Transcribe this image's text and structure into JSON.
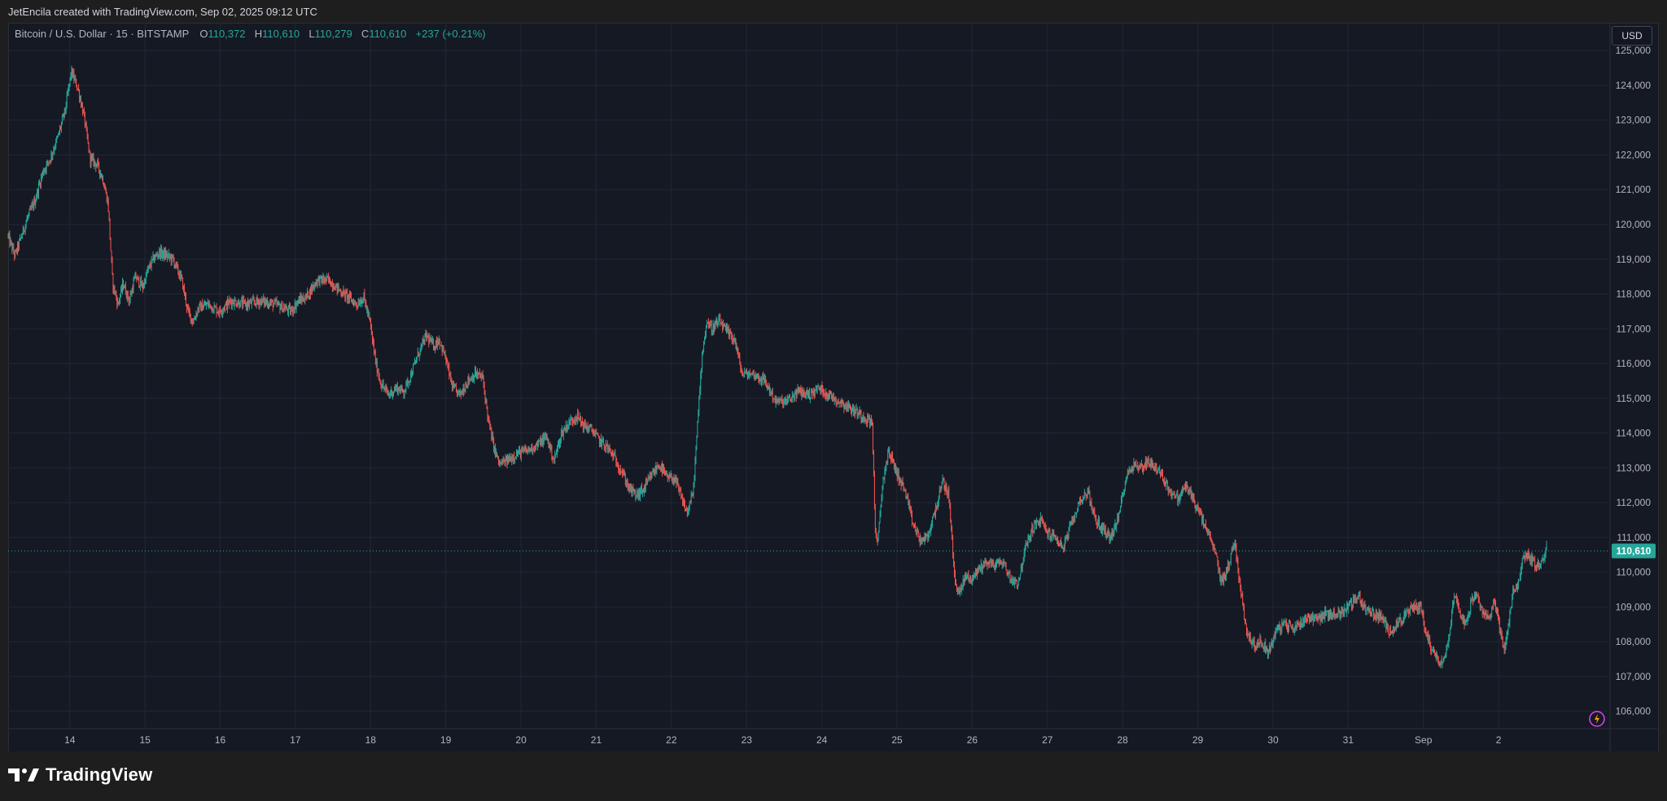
{
  "header": {
    "credit": "JetEncila created with TradingView.com, Sep 02, 2025 09:12 UTC"
  },
  "legend": {
    "symbol": "Bitcoin / U.S. Dollar · 15 · BITSTAMP",
    "open_label": "O",
    "open_value": "110,372",
    "high_label": "H",
    "high_value": "110,610",
    "low_label": "L",
    "low_value": "110,279",
    "close_label": "C",
    "close_value": "110,610",
    "change": "+237 (+0.21%)"
  },
  "currency_button": "USD",
  "last_price_label": "110,610",
  "brand": "TradingView",
  "colors": {
    "up": "#26a69a",
    "down": "#ef5350",
    "background": "#151924",
    "grid": "#232734",
    "price_tag": "#26a69a"
  },
  "chart_data": {
    "type": "candlestick",
    "symbol": "BTCUSD",
    "interval": "15",
    "ylim": [
      105500,
      125800
    ],
    "y_ticks": [
      106000,
      107000,
      108000,
      109000,
      110000,
      111000,
      112000,
      113000,
      114000,
      115000,
      116000,
      117000,
      118000,
      119000,
      120000,
      121000,
      122000,
      123000,
      124000,
      125000
    ],
    "y_tick_labels": [
      "106,000",
      "107,000",
      "108,000",
      "109,000",
      "110,000",
      "111,000",
      "112,000",
      "113,000",
      "114,000",
      "115,000",
      "116,000",
      "117,000",
      "118,000",
      "119,000",
      "120,000",
      "121,000",
      "122,000",
      "123,000",
      "124,000",
      "125,000"
    ],
    "x_range_days": [
      -0.82,
      20.46
    ],
    "x_ticks": [
      {
        "day": 0,
        "label": "14"
      },
      {
        "day": 1,
        "label": "15"
      },
      {
        "day": 2,
        "label": "16"
      },
      {
        "day": 3,
        "label": "17"
      },
      {
        "day": 4,
        "label": "18"
      },
      {
        "day": 5,
        "label": "19"
      },
      {
        "day": 6,
        "label": "20"
      },
      {
        "day": 7,
        "label": "21"
      },
      {
        "day": 8,
        "label": "22"
      },
      {
        "day": 9,
        "label": "23"
      },
      {
        "day": 10,
        "label": "24"
      },
      {
        "day": 11,
        "label": "25"
      },
      {
        "day": 12,
        "label": "26"
      },
      {
        "day": 13,
        "label": "27"
      },
      {
        "day": 14,
        "label": "28"
      },
      {
        "day": 15,
        "label": "29"
      },
      {
        "day": 16,
        "label": "30"
      },
      {
        "day": 17,
        "label": "31"
      },
      {
        "day": 18,
        "label": "Sep"
      },
      {
        "day": 19,
        "label": "2"
      }
    ],
    "price_path": [
      [
        -0.82,
        119700
      ],
      [
        -0.72,
        119100
      ],
      [
        -0.55,
        120200
      ],
      [
        -0.45,
        120700
      ],
      [
        -0.35,
        121500
      ],
      [
        -0.25,
        121900
      ],
      [
        -0.15,
        122500
      ],
      [
        -0.05,
        123300
      ],
      [
        0.03,
        124400
      ],
      [
        0.12,
        123900
      ],
      [
        0.2,
        123100
      ],
      [
        0.28,
        121900
      ],
      [
        0.38,
        121700
      ],
      [
        0.45,
        121300
      ],
      [
        0.52,
        120600
      ],
      [
        0.58,
        118300
      ],
      [
        0.65,
        117700
      ],
      [
        0.72,
        118300
      ],
      [
        0.8,
        117800
      ],
      [
        0.88,
        118500
      ],
      [
        0.98,
        118200
      ],
      [
        1.05,
        118700
      ],
      [
        1.12,
        119000
      ],
      [
        1.2,
        119200
      ],
      [
        1.3,
        119100
      ],
      [
        1.38,
        119000
      ],
      [
        1.5,
        118400
      ],
      [
        1.58,
        117500
      ],
      [
        1.65,
        117200
      ],
      [
        1.72,
        117600
      ],
      [
        1.85,
        117700
      ],
      [
        2.0,
        117500
      ],
      [
        2.15,
        117800
      ],
      [
        2.35,
        117700
      ],
      [
        2.55,
        117800
      ],
      [
        2.75,
        117700
      ],
      [
        2.95,
        117500
      ],
      [
        3.05,
        117800
      ],
      [
        3.15,
        117900
      ],
      [
        3.3,
        118400
      ],
      [
        3.45,
        118400
      ],
      [
        3.6,
        118100
      ],
      [
        3.72,
        117900
      ],
      [
        3.82,
        117700
      ],
      [
        3.92,
        117900
      ],
      [
        4.0,
        117200
      ],
      [
        4.08,
        116000
      ],
      [
        4.15,
        115400
      ],
      [
        4.25,
        115100
      ],
      [
        4.35,
        115300
      ],
      [
        4.45,
        115200
      ],
      [
        4.55,
        115700
      ],
      [
        4.65,
        116300
      ],
      [
        4.75,
        116800
      ],
      [
        4.85,
        116500
      ],
      [
        4.92,
        116700
      ],
      [
        5.0,
        116200
      ],
      [
        5.1,
        115300
      ],
      [
        5.2,
        115100
      ],
      [
        5.3,
        115500
      ],
      [
        5.4,
        115700
      ],
      [
        5.5,
        115600
      ],
      [
        5.58,
        114300
      ],
      [
        5.65,
        113600
      ],
      [
        5.72,
        113100
      ],
      [
        5.82,
        113200
      ],
      [
        5.95,
        113400
      ],
      [
        6.1,
        113500
      ],
      [
        6.25,
        113700
      ],
      [
        6.35,
        113900
      ],
      [
        6.45,
        113200
      ],
      [
        6.55,
        114000
      ],
      [
        6.65,
        114300
      ],
      [
        6.75,
        114500
      ],
      [
        6.85,
        114200
      ],
      [
        6.95,
        114100
      ],
      [
        7.05,
        113800
      ],
      [
        7.15,
        113600
      ],
      [
        7.25,
        113300
      ],
      [
        7.35,
        112900
      ],
      [
        7.45,
        112400
      ],
      [
        7.55,
        112200
      ],
      [
        7.65,
        112400
      ],
      [
        7.75,
        112800
      ],
      [
        7.85,
        113100
      ],
      [
        7.95,
        112700
      ],
      [
        8.05,
        112700
      ],
      [
        8.15,
        112100
      ],
      [
        8.22,
        111700
      ],
      [
        8.3,
        112300
      ],
      [
        8.38,
        115000
      ],
      [
        8.42,
        116300
      ],
      [
        8.48,
        117200
      ],
      [
        8.55,
        117000
      ],
      [
        8.65,
        117200
      ],
      [
        8.75,
        116900
      ],
      [
        8.85,
        116700
      ],
      [
        8.95,
        115700
      ],
      [
        9.1,
        115700
      ],
      [
        9.25,
        115500
      ],
      [
        9.4,
        114900
      ],
      [
        9.55,
        114900
      ],
      [
        9.7,
        115200
      ],
      [
        9.85,
        115100
      ],
      [
        9.97,
        115300
      ],
      [
        10.1,
        115100
      ],
      [
        10.25,
        114900
      ],
      [
        10.4,
        114700
      ],
      [
        10.55,
        114500
      ],
      [
        10.68,
        114300
      ],
      [
        10.72,
        111300
      ],
      [
        10.75,
        110700
      ],
      [
        10.82,
        112600
      ],
      [
        10.9,
        113500
      ],
      [
        11.0,
        112900
      ],
      [
        11.12,
        112300
      ],
      [
        11.22,
        111400
      ],
      [
        11.32,
        110900
      ],
      [
        11.42,
        111000
      ],
      [
        11.52,
        111800
      ],
      [
        11.62,
        112600
      ],
      [
        11.7,
        112200
      ],
      [
        11.78,
        109700
      ],
      [
        11.85,
        109400
      ],
      [
        11.92,
        109900
      ],
      [
        12.0,
        109800
      ],
      [
        12.1,
        110100
      ],
      [
        12.2,
        110300
      ],
      [
        12.3,
        110200
      ],
      [
        12.42,
        110300
      ],
      [
        12.52,
        109800
      ],
      [
        12.62,
        109700
      ],
      [
        12.72,
        110700
      ],
      [
        12.82,
        111300
      ],
      [
        12.92,
        111500
      ],
      [
        13.02,
        111100
      ],
      [
        13.12,
        111000
      ],
      [
        13.22,
        110700
      ],
      [
        13.35,
        111500
      ],
      [
        13.45,
        112100
      ],
      [
        13.55,
        112300
      ],
      [
        13.65,
        111500
      ],
      [
        13.72,
        111300
      ],
      [
        13.85,
        111000
      ],
      [
        13.95,
        111500
      ],
      [
        14.05,
        112700
      ],
      [
        14.15,
        113100
      ],
      [
        14.25,
        113000
      ],
      [
        14.35,
        113200
      ],
      [
        14.45,
        113000
      ],
      [
        14.55,
        112700
      ],
      [
        14.65,
        112300
      ],
      [
        14.75,
        112100
      ],
      [
        14.85,
        112500
      ],
      [
        14.95,
        112100
      ],
      [
        15.05,
        111600
      ],
      [
        15.15,
        111100
      ],
      [
        15.25,
        110500
      ],
      [
        15.32,
        109700
      ],
      [
        15.42,
        110200
      ],
      [
        15.5,
        110900
      ],
      [
        15.58,
        109500
      ],
      [
        15.65,
        108400
      ],
      [
        15.75,
        107900
      ],
      [
        15.85,
        108000
      ],
      [
        15.95,
        107700
      ],
      [
        16.05,
        108300
      ],
      [
        16.15,
        108500
      ],
      [
        16.3,
        108400
      ],
      [
        16.45,
        108700
      ],
      [
        16.6,
        108700
      ],
      [
        16.75,
        108800
      ],
      [
        16.9,
        108800
      ],
      [
        17.05,
        109100
      ],
      [
        17.15,
        109300
      ],
      [
        17.25,
        108900
      ],
      [
        17.35,
        108800
      ],
      [
        17.45,
        108700
      ],
      [
        17.55,
        108300
      ],
      [
        17.65,
        108500
      ],
      [
        17.75,
        108700
      ],
      [
        17.88,
        109000
      ],
      [
        17.98,
        109000
      ],
      [
        18.05,
        108200
      ],
      [
        18.12,
        107800
      ],
      [
        18.2,
        107500
      ],
      [
        18.28,
        107400
      ],
      [
        18.35,
        108200
      ],
      [
        18.42,
        109400
      ],
      [
        18.5,
        108800
      ],
      [
        18.58,
        108500
      ],
      [
        18.65,
        109200
      ],
      [
        18.72,
        109300
      ],
      [
        18.8,
        108800
      ],
      [
        18.88,
        108700
      ],
      [
        18.95,
        109200
      ],
      [
        19.02,
        108500
      ],
      [
        19.08,
        107700
      ],
      [
        19.14,
        108500
      ],
      [
        19.2,
        109400
      ],
      [
        19.27,
        109600
      ],
      [
        19.33,
        110400
      ],
      [
        19.4,
        110500
      ],
      [
        19.5,
        110200
      ],
      [
        19.58,
        110200
      ],
      [
        19.64,
        110700
      ]
    ]
  }
}
